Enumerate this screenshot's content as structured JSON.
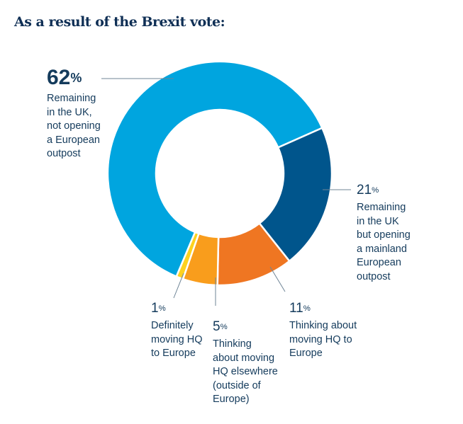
{
  "chart_data": {
    "type": "pie",
    "donut": true,
    "title": "As a result of the Brexit vote:",
    "unit": "%",
    "slices": [
      {
        "value": 62,
        "pct_label": "62",
        "label": "Remaining\nin the UK,\nnot opening\na European\noutpost",
        "color": "#00a5df"
      },
      {
        "value": 21,
        "pct_label": "21",
        "label": "Remaining\nin the UK\nbut opening\na mainland\nEuropean\noutpost",
        "color": "#00558c"
      },
      {
        "value": 11,
        "pct_label": "11",
        "label": "Thinking about\nmoving HQ to\nEurope",
        "color": "#ef7622"
      },
      {
        "value": 5,
        "pct_label": "5",
        "label": "Thinking\nabout moving\nHQ elsewhere\n(outside of\nEurope)",
        "color": "#f99d1c"
      },
      {
        "value": 1,
        "pct_label": "1",
        "label": "Definitely\nmoving HQ\nto Europe",
        "color": "#fdd21f"
      }
    ]
  }
}
